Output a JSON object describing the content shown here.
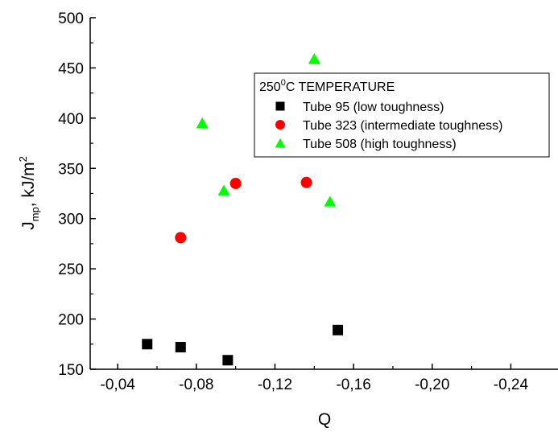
{
  "chart_data": {
    "type": "scatter",
    "xlabel": "Q",
    "ylabel": {
      "base": "J",
      "subscript": "mp",
      "unit": ", kJ/m",
      "superscript": "2"
    },
    "x_axis_reversed": true,
    "xlim": [
      -0.026,
      -0.264
    ],
    "ylim": [
      150,
      500
    ],
    "x_ticks": [
      {
        "value": -0.04,
        "label": "-0,04"
      },
      {
        "value": -0.08,
        "label": "-0,08"
      },
      {
        "value": -0.12,
        "label": "-0,12"
      },
      {
        "value": -0.16,
        "label": "-0,16"
      },
      {
        "value": -0.2,
        "label": "-0,20"
      },
      {
        "value": -0.24,
        "label": "-0,24"
      }
    ],
    "y_ticks": [
      {
        "value": 150,
        "label": "150"
      },
      {
        "value": 200,
        "label": "200"
      },
      {
        "value": 250,
        "label": "250"
      },
      {
        "value": 300,
        "label": "300"
      },
      {
        "value": 350,
        "label": "350"
      },
      {
        "value": 400,
        "label": "400"
      },
      {
        "value": 450,
        "label": "450"
      },
      {
        "value": 500,
        "label": "500"
      }
    ],
    "grid": false,
    "legend": {
      "placement": "top-right",
      "title": {
        "prefix": "250",
        "superscript": "0",
        "suffix": "C TEMPERATURE"
      }
    },
    "series": [
      {
        "name": "Tube 95 (low toughness)",
        "marker": "square",
        "color": "#000000",
        "points": [
          {
            "x": -0.055,
            "y": 175
          },
          {
            "x": -0.072,
            "y": 172
          },
          {
            "x": -0.096,
            "y": 159
          },
          {
            "x": -0.152,
            "y": 189
          }
        ]
      },
      {
        "name": "Tube 323 (intermediate toughness)",
        "marker": "circle",
        "color": "#ff0000",
        "points": [
          {
            "x": -0.072,
            "y": 281
          },
          {
            "x": -0.1,
            "y": 335
          },
          {
            "x": -0.136,
            "y": 336
          }
        ]
      },
      {
        "name": "Tube 508 (high toughness)",
        "marker": "triangle",
        "color": "#00ff00",
        "points": [
          {
            "x": -0.083,
            "y": 395
          },
          {
            "x": -0.094,
            "y": 328
          },
          {
            "x": -0.14,
            "y": 459
          },
          {
            "x": -0.148,
            "y": 317
          }
        ]
      }
    ]
  }
}
